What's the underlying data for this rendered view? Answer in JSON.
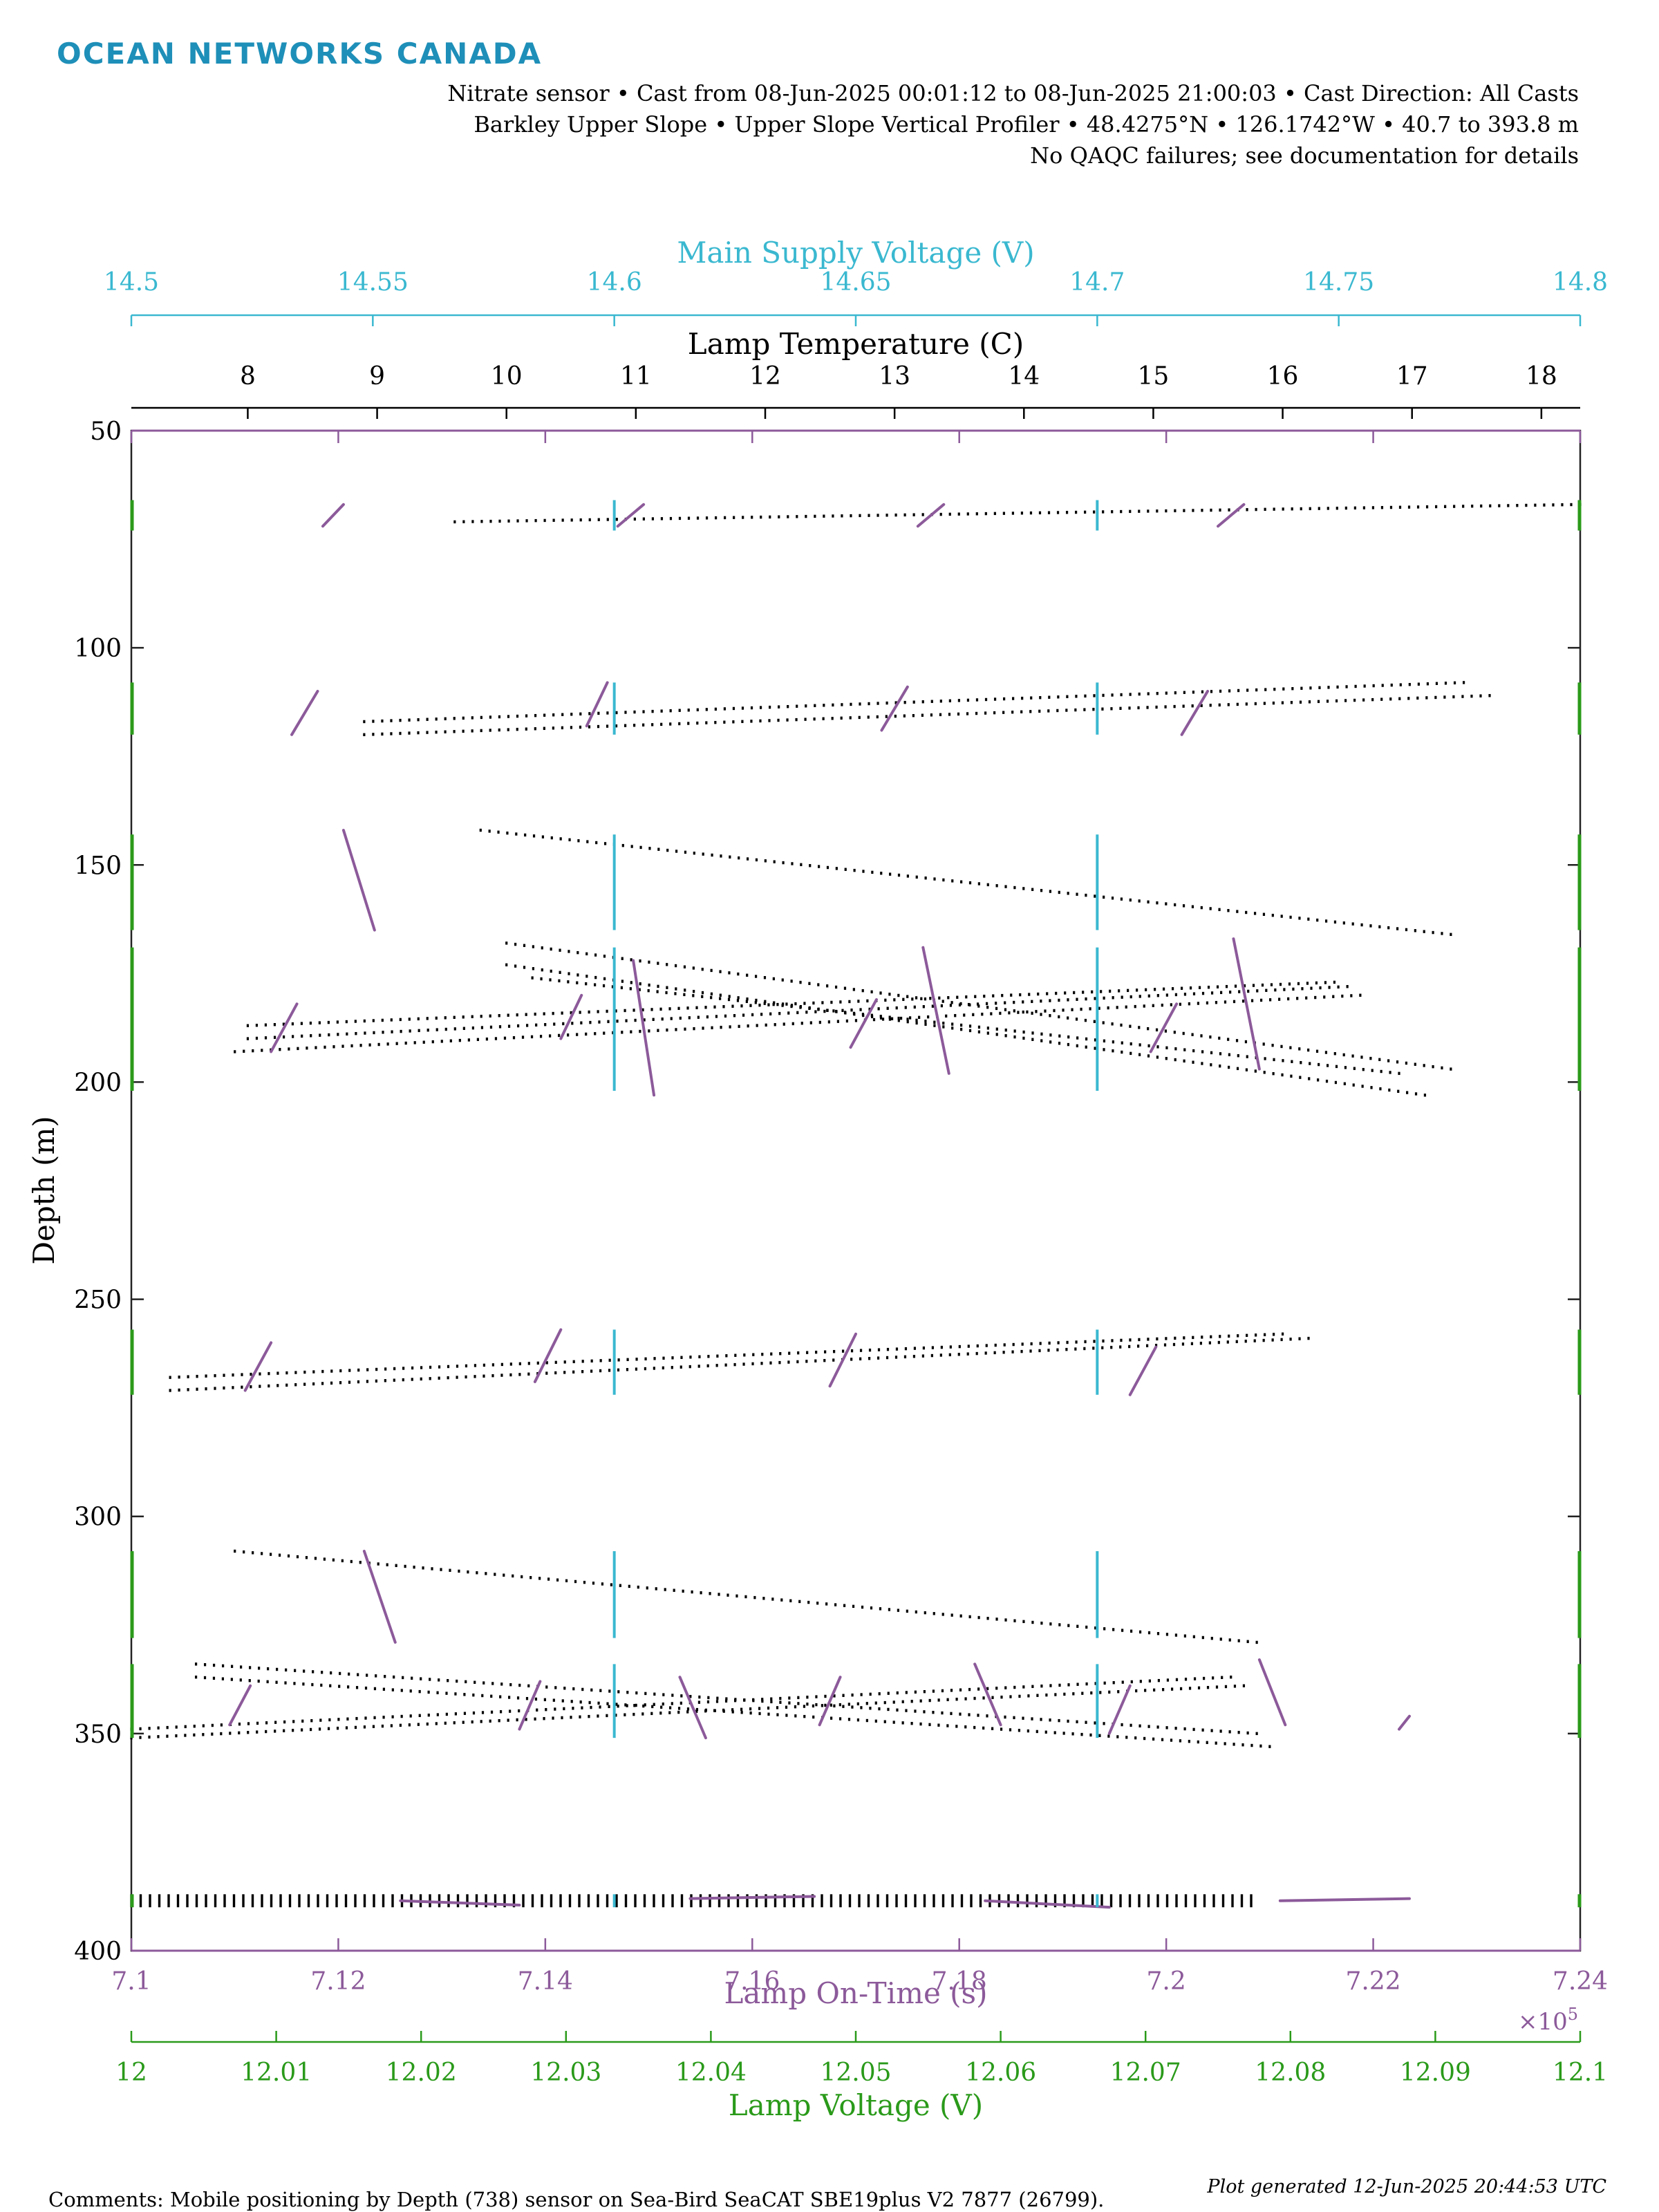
{
  "header": {
    "logo": "OCEAN NETWORKS CANADA",
    "line1": "Nitrate sensor • Cast from 08-Jun-2025 00:01:12 to 08-Jun-2025 21:00:03 • Cast Direction: All Casts",
    "line2": "Barkley Upper Slope • Upper Slope Vertical Profiler • 48.4275°N • 126.1742°W • 40.7 to 393.8 m",
    "line3": "No QAQC failures; see documentation for details"
  },
  "footer": {
    "comments": "Comments: Mobile positioning by Depth (738) sensor on Sea-Bird SeaCAT SBE19plus V2 7877 (26799).",
    "generated": "Plot generated 12-Jun-2025 20:44:53 UTC"
  },
  "colors": {
    "supply": "#3ab8d0",
    "temperature": "#000000",
    "ontime": "#8c5a9a",
    "lampvoltage": "#2a9a1a",
    "axis": "#222222"
  },
  "chart_data": {
    "type": "scatter",
    "y_axis": {
      "label": "Depth (m)",
      "range": [
        50,
        400
      ],
      "ticks": [
        50,
        100,
        150,
        200,
        250,
        300,
        350,
        400
      ],
      "reversed": true
    },
    "x_axes": [
      {
        "id": "supply",
        "label": "Main Supply Voltage (V)",
        "position": "top-outer",
        "range": [
          14.5,
          14.8
        ],
        "ticks": [
          "14.5",
          "14.55",
          "14.6",
          "14.65",
          "14.7",
          "14.75",
          "14.8"
        ]
      },
      {
        "id": "temperature",
        "label": "Lamp Temperature (C)",
        "position": "top-inner",
        "range": [
          7.1,
          18.3
        ],
        "ticks": [
          "8",
          "9",
          "10",
          "11",
          "12",
          "13",
          "14",
          "15",
          "16",
          "17",
          "18"
        ]
      },
      {
        "id": "ontime",
        "label": "Lamp On-Time (s)",
        "position": "bottom-inner",
        "range": [
          7.1,
          7.24
        ],
        "ticks": [
          "7.1",
          "7.12",
          "7.14",
          "7.16",
          "7.18",
          "7.2",
          "7.22",
          "7.24"
        ],
        "multiplier": "×10",
        "exponent": "5"
      },
      {
        "id": "lampvoltage",
        "label": "Lamp Voltage (V)",
        "position": "bottom-outer",
        "range": [
          12,
          12.1
        ],
        "ticks": [
          "12",
          "12.01",
          "12.02",
          "12.03",
          "12.04",
          "12.05",
          "12.06",
          "12.07",
          "12.08",
          "12.09",
          "12.1"
        ]
      }
    ],
    "series": [
      {
        "axis": "temperature",
        "style": "dots",
        "segments": [
          [
            [
              9.6,
              71
            ],
            [
              18.3,
              67
            ]
          ],
          [
            [
              8.9,
              120
            ],
            [
              17.6,
              111
            ]
          ],
          [
            [
              8.9,
              117
            ],
            [
              17.4,
              108
            ]
          ],
          [
            [
              9.8,
              142
            ],
            [
              17.3,
              166
            ]
          ],
          [
            [
              10.0,
              168
            ],
            [
              17.3,
              197
            ]
          ],
          [
            [
              10.0,
              173
            ],
            [
              17.1,
              203
            ]
          ],
          [
            [
              10.2,
              176
            ],
            [
              16.9,
              198
            ]
          ],
          [
            [
              7.9,
              193
            ],
            [
              16.6,
              180
            ]
          ],
          [
            [
              8.0,
              190
            ],
            [
              16.5,
              178
            ]
          ],
          [
            [
              8.0,
              187
            ],
            [
              16.4,
              177
            ]
          ],
          [
            [
              7.4,
              271
            ],
            [
              16.2,
              259
            ]
          ],
          [
            [
              7.4,
              268
            ],
            [
              16.0,
              258
            ]
          ],
          [
            [
              7.9,
              308
            ],
            [
              15.8,
              329
            ]
          ],
          [
            [
              7.6,
              337
            ],
            [
              15.9,
              353
            ]
          ],
          [
            [
              7.6,
              334
            ],
            [
              15.8,
              350
            ]
          ],
          [
            [
              7.1,
              351
            ],
            [
              15.7,
              339
            ]
          ],
          [
            [
              7.1,
              349
            ],
            [
              15.6,
              337
            ]
          ]
        ],
        "depth_rows": [
          387,
          390
        ]
      },
      {
        "axis": "ontime",
        "style": "segments",
        "segments": [
          [
            [
              7.1185,
              72
            ],
            [
              7.1205,
              67
            ]
          ],
          [
            [
              7.147,
              72
            ],
            [
              7.1495,
              67
            ]
          ],
          [
            [
              7.176,
              72
            ],
            [
              7.1785,
              67
            ]
          ],
          [
            [
              7.205,
              72
            ],
            [
              7.2075,
              67
            ]
          ],
          [
            [
              7.1155,
              120
            ],
            [
              7.118,
              110
            ]
          ],
          [
            [
              7.144,
              118
            ],
            [
              7.146,
              108
            ]
          ],
          [
            [
              7.1725,
              119
            ],
            [
              7.175,
              109
            ]
          ],
          [
            [
              7.2015,
              120
            ],
            [
              7.204,
              110
            ]
          ],
          [
            [
              7.1205,
              142
            ],
            [
              7.1235,
              165
            ]
          ],
          [
            [
              7.1485,
              172
            ],
            [
              7.1505,
              203
            ]
          ],
          [
            [
              7.1765,
              169
            ],
            [
              7.179,
              198
            ]
          ],
          [
            [
              7.2065,
              167
            ],
            [
              7.209,
              197
            ]
          ],
          [
            [
              7.1135,
              193
            ],
            [
              7.116,
              182
            ]
          ],
          [
            [
              7.1415,
              190
            ],
            [
              7.1435,
              180
            ]
          ],
          [
            [
              7.1695,
              192
            ],
            [
              7.172,
              181
            ]
          ],
          [
            [
              7.1985,
              193
            ],
            [
              7.201,
              182
            ]
          ],
          [
            [
              7.111,
              271
            ],
            [
              7.1135,
              260
            ]
          ],
          [
            [
              7.139,
              269
            ],
            [
              7.1415,
              257
            ]
          ],
          [
            [
              7.1675,
              270
            ],
            [
              7.17,
              258
            ]
          ],
          [
            [
              7.1965,
              272
            ],
            [
              7.199,
              261
            ]
          ],
          [
            [
              7.1225,
              308
            ],
            [
              7.1255,
              329
            ]
          ],
          [
            [
              7.1095,
              348
            ],
            [
              7.1115,
              339
            ]
          ],
          [
            [
              7.1375,
              349
            ],
            [
              7.1395,
              338
            ]
          ],
          [
            [
              7.1665,
              348
            ],
            [
              7.1685,
              337
            ]
          ],
          [
            [
              7.1945,
              350
            ],
            [
              7.1965,
              339
            ]
          ],
          [
            [
              7.153,
              337
            ],
            [
              7.1555,
              351
            ]
          ],
          [
            [
              7.1815,
              334
            ],
            [
              7.184,
              348
            ]
          ],
          [
            [
              7.209,
              333
            ],
            [
              7.2115,
              348
            ]
          ],
          [
            [
              7.2225,
              349
            ],
            [
              7.2235,
              346
            ]
          ],
          [
            [
              7.126,
              388.5
            ],
            [
              7.1375,
              389.5
            ]
          ],
          [
            [
              7.154,
              388
            ],
            [
              7.166,
              387.5
            ]
          ],
          [
            [
              7.1825,
              388.5
            ],
            [
              7.1945,
              390
            ]
          ],
          [
            [
              7.211,
              388.5
            ],
            [
              7.2235,
              388
            ]
          ]
        ]
      },
      {
        "axis": "supply",
        "style": "vertical",
        "x_values": [
          14.6,
          14.7
        ],
        "bands": [
          [
            66,
            73
          ],
          [
            108,
            120
          ],
          [
            143,
            165
          ],
          [
            169,
            202
          ],
          [
            257,
            272
          ],
          [
            308,
            328
          ],
          [
            334,
            351
          ],
          [
            387,
            390
          ]
        ]
      },
      {
        "axis": "lampvoltage",
        "style": "vertical",
        "x_values": [
          12,
          12.1
        ],
        "bands": [
          [
            66,
            73
          ],
          [
            108,
            120
          ],
          [
            143,
            165
          ],
          [
            169,
            202
          ],
          [
            257,
            272
          ],
          [
            308,
            328
          ],
          [
            334,
            351
          ],
          [
            387,
            390
          ]
        ]
      }
    ]
  }
}
